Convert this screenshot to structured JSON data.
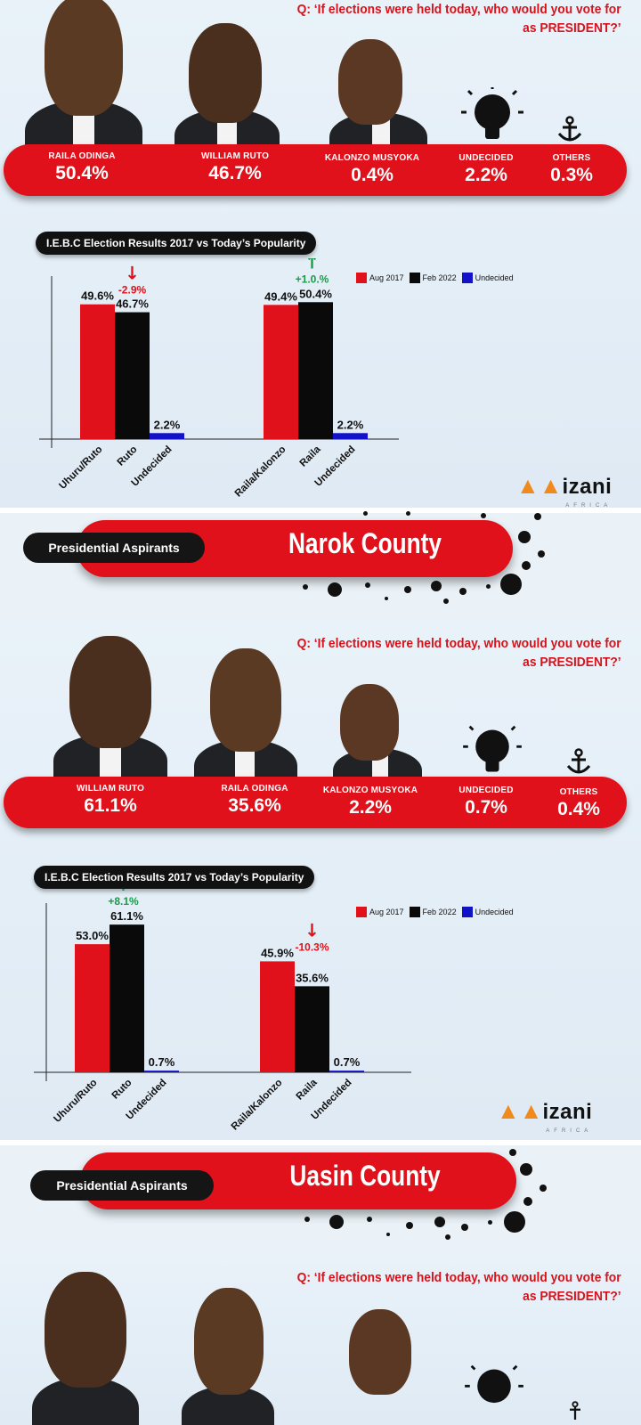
{
  "panels": [
    {
      "question_line1": "Q: ‘If elections were held today, who would you vote for",
      "question_line2": "as PRESIDENT?’",
      "candidates": [
        {
          "name": "RAILA ODINGA",
          "pct": "50.4%"
        },
        {
          "name": "WILLIAM RUTO",
          "pct": "46.7%"
        },
        {
          "name": "KALONZO MUSYOKA",
          "pct": "0.4%"
        },
        {
          "name": "UNDECIDED",
          "pct": "2.2%"
        },
        {
          "name": "OTHERS",
          "pct": "0.3%"
        }
      ],
      "chart_title": "I.E.B.C Election Results 2017 vs Today’s Popularity",
      "legend": [
        "Aug 2017",
        "Feb 2022",
        "Undecided"
      ]
    },
    {
      "question_line1": "Q: ‘If elections were held today, who would you vote for",
      "question_line2": "as PRESIDENT?’",
      "candidates": [
        {
          "name": "WILLIAM RUTO",
          "pct": "61.1%"
        },
        {
          "name": "RAILA ODINGA",
          "pct": "35.6%"
        },
        {
          "name": "KALONZO MUSYOKA",
          "pct": "2.2%"
        },
        {
          "name": "UNDECIDED",
          "pct": "0.7%"
        },
        {
          "name": "OTHERS",
          "pct": "0.4%"
        }
      ],
      "chart_title": "I.E.B.C Election Results 2017 vs Today’s Popularity",
      "legend": [
        "Aug 2017",
        "Feb 2022",
        "Undecided"
      ]
    },
    {
      "question_line1": "Q: ‘If elections were held today, who would you vote for",
      "question_line2": "as PRESIDENT?’"
    }
  ],
  "banners": [
    {
      "label": "Presidential Aspirants",
      "county": "Narok County"
    },
    {
      "label": "Presidential Aspirants",
      "county": "Uasin County"
    }
  ],
  "logo": {
    "word": "izani",
    "sub": "AFRICA"
  },
  "colors": {
    "aug2017": "#e0111a",
    "feb2022": "#0a0a0a",
    "undecided": "#1212c8",
    "up": "#1a9a4a",
    "down": "#e0111a"
  },
  "icons": {
    "undecided": "lightbulb-icon",
    "others": "anchor-icon"
  },
  "chart_data": [
    {
      "type": "bar",
      "title": "I.E.B.C Election Results 2017 vs Today’s Popularity",
      "ylim": [
        0,
        60
      ],
      "groups": [
        {
          "bars": [
            {
              "label": "Uhuru/Ruto",
              "series": "Aug 2017",
              "value": 49.6,
              "display": "49.6%"
            },
            {
              "label": "Ruto",
              "series": "Feb 2022",
              "value": 46.7,
              "display": "46.7%"
            },
            {
              "label": "Undecided",
              "series": "Undecided",
              "value": 2.2,
              "display": "2.2%"
            }
          ],
          "change": {
            "text": "-2.9%",
            "direction": "down",
            "arrow": "↓"
          }
        },
        {
          "bars": [
            {
              "label": "Raila/Kalonzo",
              "series": "Aug 2017",
              "value": 49.4,
              "display": "49.4%"
            },
            {
              "label": "Raila",
              "series": "Feb 2022",
              "value": 50.4,
              "display": "50.4%"
            },
            {
              "label": "Undecided",
              "series": "Undecided",
              "value": 2.2,
              "display": "2.2%"
            }
          ],
          "change": {
            "text": "+1.0.%",
            "direction": "up",
            "arrow": "↑"
          }
        }
      ]
    },
    {
      "type": "bar",
      "title": "I.E.B.C Election Results 2017 vs Today’s Popularity",
      "ylim": [
        0,
        70
      ],
      "groups": [
        {
          "bars": [
            {
              "label": "Uhuru/Ruto",
              "series": "Aug 2017",
              "value": 53.0,
              "display": "53.0%"
            },
            {
              "label": "Ruto",
              "series": "Feb 2022",
              "value": 61.1,
              "display": "61.1%"
            },
            {
              "label": "Undecided",
              "series": "Undecided",
              "value": 0.7,
              "display": "0.7%"
            }
          ],
          "change": {
            "text": "+8.1%",
            "direction": "up",
            "arrow": "↑"
          }
        },
        {
          "bars": [
            {
              "label": "Raila/Kalonzo",
              "series": "Aug 2017",
              "value": 45.9,
              "display": "45.9%"
            },
            {
              "label": "Raila",
              "series": "Feb 2022",
              "value": 35.6,
              "display": "35.6%"
            },
            {
              "label": "Undecided",
              "series": "Undecided",
              "value": 0.7,
              "display": "0.7%"
            }
          ],
          "change": {
            "text": "-10.3%",
            "direction": "down",
            "arrow": "↓"
          }
        }
      ]
    }
  ]
}
